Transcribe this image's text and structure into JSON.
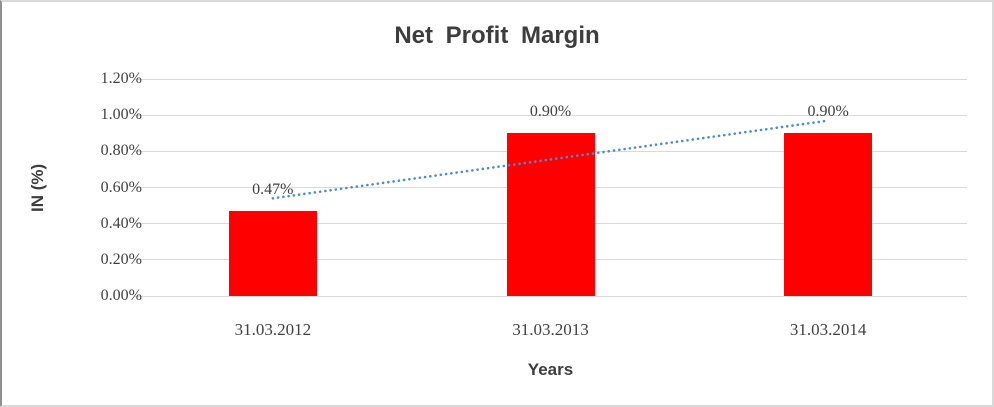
{
  "frame": {
    "background": "#ffffff",
    "border_color": "#d9d9d9",
    "border_left_color": "#8f8f8f"
  },
  "chart_data": {
    "type": "bar",
    "title": "Net Profit Margin",
    "xlabel": "Years",
    "ylabel": "IN (%)",
    "categories": [
      "31.03.2012",
      "31.03.2013",
      "31.03.2014"
    ],
    "series": [
      {
        "name": "Net Profit Margin",
        "values": [
          0.47,
          0.9,
          0.9
        ]
      }
    ],
    "value_labels": [
      "0.47%",
      "0.90%",
      "0.90%"
    ],
    "ylim": [
      0,
      1.2
    ],
    "ytick_step": 0.2,
    "ytick_labels": [
      "0.00%",
      "0.20%",
      "0.40%",
      "0.60%",
      "0.80%",
      "1.00%",
      "1.20%"
    ],
    "grid": true,
    "legend": "none",
    "bar_color": "#ff0000",
    "gridline_color": "#d9d9d9",
    "text_color": "#404040",
    "title_color": "#3d3d3d",
    "trendline": {
      "type": "linear",
      "style": "dotted",
      "color": "#4f8bc9",
      "start_value": 0.54,
      "end_value": 0.97
    }
  }
}
